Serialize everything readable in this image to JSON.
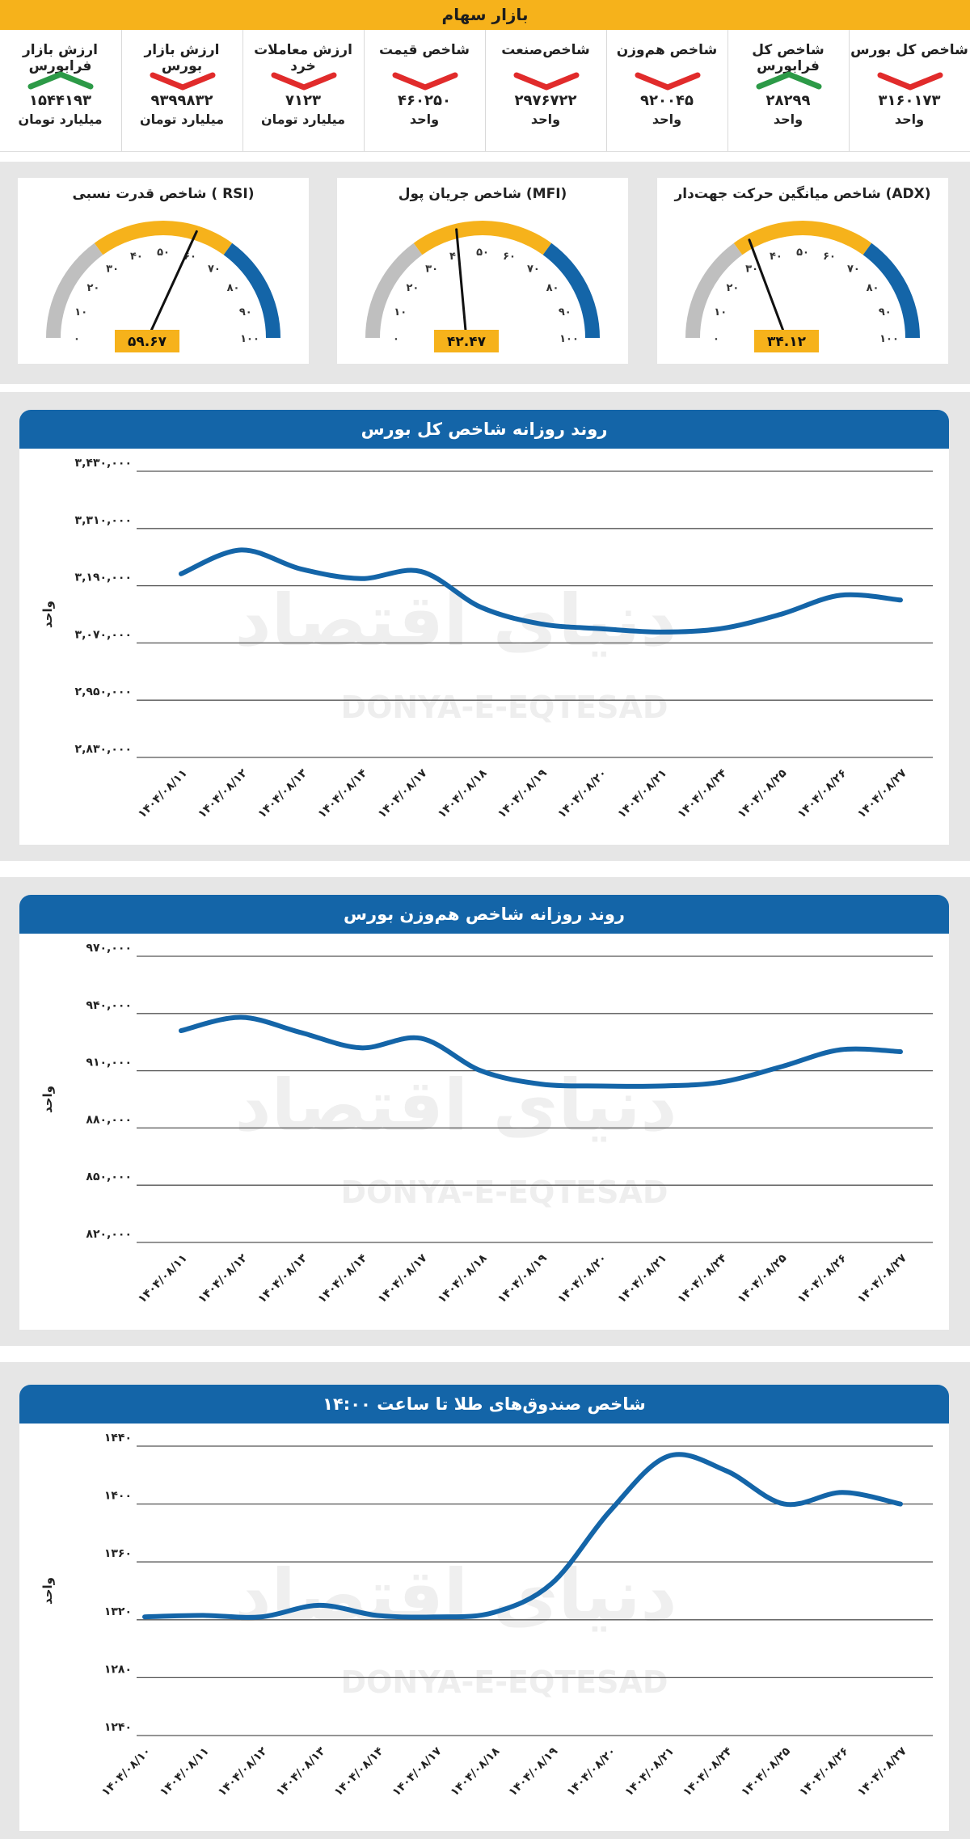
{
  "header": {
    "title": "بازار سهام"
  },
  "colors": {
    "accent": "#f6b21b",
    "blue": "#1465a8",
    "up": "#2c9a47",
    "down": "#e12b2b",
    "gray": "#bfbfbf"
  },
  "tiles": [
    {
      "label": "شاخص کل بورس",
      "value": "۳۱۶۰۱۷۳",
      "unit": "واحد",
      "trend": "down"
    },
    {
      "label": "شاخص کل فرابورس",
      "value": "۲۸۲۹۹",
      "unit": "واحد",
      "trend": "up"
    },
    {
      "label": "شاخص هم‌وزن",
      "value": "۹۲۰۰۴۵",
      "unit": "واحد",
      "trend": "down"
    },
    {
      "label": "شاخص‌صنعت",
      "value": "۲۹۷۶۷۲۲",
      "unit": "واحد",
      "trend": "down"
    },
    {
      "label": "شاخص قیمت",
      "value": "۴۶۰۲۵۰",
      "unit": "واحد",
      "trend": "down"
    },
    {
      "label": "ارزش معاملات خرد",
      "value": "۷۱۲۳",
      "unit": "میلیارد تومان",
      "trend": "down"
    },
    {
      "label": "ارزش بازار بورس",
      "value": "۹۳۹۹۸۳۲",
      "unit": "میلیارد تومان",
      "trend": "down"
    },
    {
      "label": "ارزش بازار فرابورس",
      "value": "۱۵۴۴۱۹۳",
      "unit": "میلیارد تومان",
      "trend": "up"
    }
  ],
  "gauges": [
    {
      "title": "شاخص میانگین حرکت جهت‌دار (ADX)",
      "value": 34.12,
      "value_text": "۳۴.۱۲"
    },
    {
      "title": "شاخص جریان پول (MFI)",
      "value": 42.47,
      "value_text": "۴۲.۴۷"
    },
    {
      "title": "شاخص قدرت نسبی ( RSI)",
      "value": 59.67,
      "value_text": "۵۹.۶۷"
    }
  ],
  "gauge_ticks": [
    "۰",
    "۱۰",
    "۲۰",
    "۳۰",
    "۴۰",
    "۵۰",
    "۶۰",
    "۷۰",
    "۸۰",
    "۹۰",
    "۱۰۰"
  ],
  "watermark": {
    "fa": "دنیای اقتصاد",
    "en": "DONYA-E-EQTESAD"
  },
  "chart_data": [
    {
      "type": "line",
      "title": "روند روزانه شاخص کل بورس",
      "ylabel": "واحد",
      "ylim": [
        2830000,
        3430000
      ],
      "yticks": [
        2830000,
        2950000,
        3070000,
        3190000,
        3310000,
        3430000
      ],
      "ytick_labels": [
        "۲,۸۳۰,۰۰۰",
        "۲,۹۵۰,۰۰۰",
        "۳,۰۷۰,۰۰۰",
        "۳,۱۹۰,۰۰۰",
        "۳,۳۱۰,۰۰۰",
        "۳,۴۳۰,۰۰۰"
      ],
      "categories": [
        "۱۴۰۴/۰۸/۱۱",
        "۱۴۰۴/۰۸/۱۲",
        "۱۴۰۴/۰۸/۱۳",
        "۱۴۰۴/۰۸/۱۴",
        "۱۴۰۴/۰۸/۱۷",
        "۱۴۰۴/۰۸/۱۸",
        "۱۴۰۴/۰۸/۱۹",
        "۱۴۰۴/۰۸/۲۰",
        "۱۴۰۴/۰۸/۲۱",
        "۱۴۰۴/۰۸/۲۴",
        "۱۴۰۴/۰۸/۲۵",
        "۱۴۰۴/۰۸/۲۶",
        "۱۴۰۴/۰۸/۲۷"
      ],
      "values": [
        3215000,
        3265000,
        3225000,
        3205000,
        3220000,
        3145000,
        3110000,
        3100000,
        3093000,
        3100000,
        3130000,
        3170000,
        3160000
      ]
    },
    {
      "type": "line",
      "title": "روند روزانه شاخص هم‌وزن بورس",
      "ylabel": "واحد",
      "ylim": [
        820000,
        970000
      ],
      "yticks": [
        820000,
        850000,
        880000,
        910000,
        940000,
        970000
      ],
      "ytick_labels": [
        "۸۲۰,۰۰۰",
        "۸۵۰,۰۰۰",
        "۸۸۰,۰۰۰",
        "۹۱۰,۰۰۰",
        "۹۴۰,۰۰۰",
        "۹۷۰,۰۰۰"
      ],
      "categories": [
        "۱۴۰۴/۰۸/۱۱",
        "۱۴۰۴/۰۸/۱۲",
        "۱۴۰۴/۰۸/۱۳",
        "۱۴۰۴/۰۸/۱۴",
        "۱۴۰۴/۰۸/۱۷",
        "۱۴۰۴/۰۸/۱۸",
        "۱۴۰۴/۰۸/۱۹",
        "۱۴۰۴/۰۸/۲۰",
        "۱۴۰۴/۰۸/۲۱",
        "۱۴۰۴/۰۸/۲۴",
        "۱۴۰۴/۰۸/۲۵",
        "۱۴۰۴/۰۸/۲۶",
        "۱۴۰۴/۰۸/۲۷"
      ],
      "values": [
        931000,
        938000,
        930000,
        922000,
        927000,
        910000,
        903000,
        902000,
        902000,
        904000,
        912000,
        921000,
        920000
      ]
    },
    {
      "type": "line",
      "title": "شاخص صندوق‌های طلا تا ساعت ۱۴:۰۰",
      "ylabel": "واحد",
      "ylim": [
        1240,
        1440
      ],
      "yticks": [
        1240,
        1280,
        1320,
        1360,
        1400,
        1440
      ],
      "ytick_labels": [
        "۱۲۴۰",
        "۱۲۸۰",
        "۱۳۲۰",
        "۱۳۶۰",
        "۱۴۰۰",
        "۱۴۴۰"
      ],
      "categories": [
        "۱۴۰۴/۰۸/۱۰",
        "۱۴۰۴/۰۸/۱۱",
        "۱۴۰۴/۰۸/۱۲",
        "۱۴۰۴/۰۸/۱۳",
        "۱۴۰۴/۰۸/۱۴",
        "۱۴۰۴/۰۸/۱۷",
        "۱۴۰۴/۰۸/۱۸",
        "۱۴۰۴/۰۸/۱۹",
        "۱۴۰۴/۰۸/۲۰",
        "۱۴۰۴/۰۸/۲۱",
        "۱۴۰۴/۰۸/۲۴",
        "۱۴۰۴/۰۸/۲۵",
        "۱۴۰۴/۰۸/۲۶",
        "۱۴۰۴/۰۸/۲۷"
      ],
      "values": [
        1322,
        1323,
        1322,
        1330,
        1323,
        1322,
        1325,
        1345,
        1395,
        1433,
        1423,
        1400,
        1408,
        1400
      ]
    }
  ]
}
